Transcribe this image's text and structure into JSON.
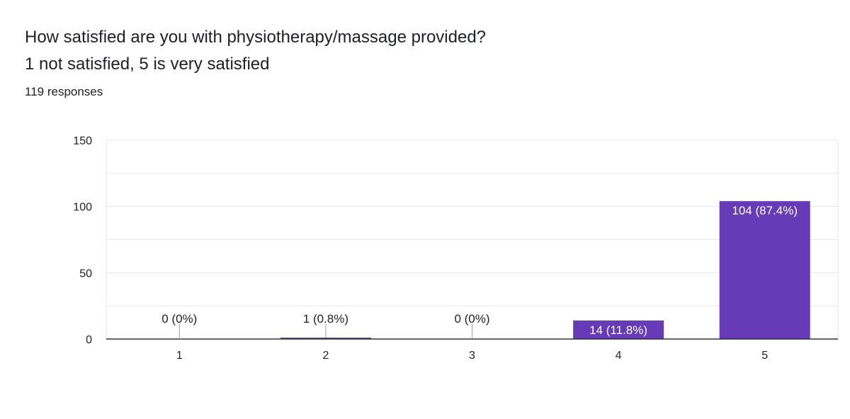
{
  "question": {
    "line1": "How satisfied are you with physiotherapy/massage provided?",
    "line2": "1 not satisfied, 5 is very satisfied"
  },
  "responses_label": "119 responses",
  "colors": {
    "bar": "#673ab7",
    "grid": "#e6e6e6",
    "axis": "#333333",
    "text": "#202124",
    "inside_label": "#ffffff"
  },
  "chart_data": {
    "type": "bar",
    "title": "",
    "xlabel": "",
    "ylabel": "",
    "categories": [
      "1",
      "2",
      "3",
      "4",
      "5"
    ],
    "values": [
      0,
      1,
      0,
      14,
      104
    ],
    "labels": [
      "0 (0%)",
      "1 (0.8%)",
      "0 (0%)",
      "14 (11.8%)",
      "104 (87.4%)"
    ],
    "ylim": [
      0,
      150
    ],
    "yticks": [
      "0",
      "50",
      "100",
      "150"
    ],
    "grid": true,
    "legend": "none"
  }
}
